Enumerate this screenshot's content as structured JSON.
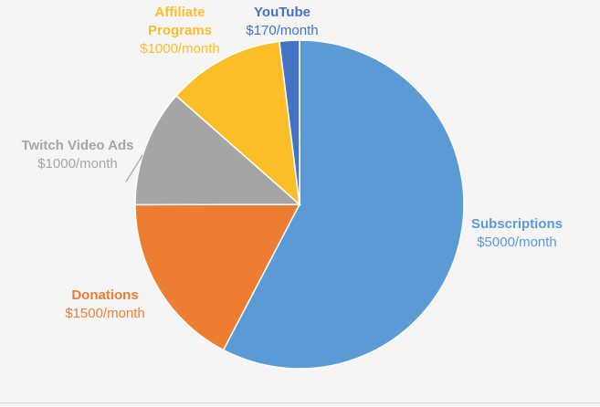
{
  "chart_data": {
    "type": "pie",
    "title": "",
    "slices": [
      {
        "label": "Subscriptions",
        "amount_label": "$5000/month",
        "value": 5000,
        "color": "#5B9BD5"
      },
      {
        "label": "Donations",
        "amount_label": "$1500/month",
        "value": 1500,
        "color": "#ED7D31"
      },
      {
        "label": "Twitch Video Ads",
        "amount_label": "$1000/month",
        "value": 1000,
        "color": "#A5A5A5"
      },
      {
        "label": "Affiliate Programs",
        "amount_label": "$1000/month",
        "value": 1000,
        "color": "#FBBE27"
      },
      {
        "label": "YouTube",
        "amount_label": "$170/month",
        "value": 170,
        "color": "#4472C4"
      }
    ],
    "label_colors": {
      "Subscriptions": "#5B9BD5",
      "Donations": "#ED7D31",
      "Twitch Video Ads": "#A5A5A5",
      "Affiliate Programs": "#FBBE27",
      "YouTube": "#4472C4"
    }
  }
}
